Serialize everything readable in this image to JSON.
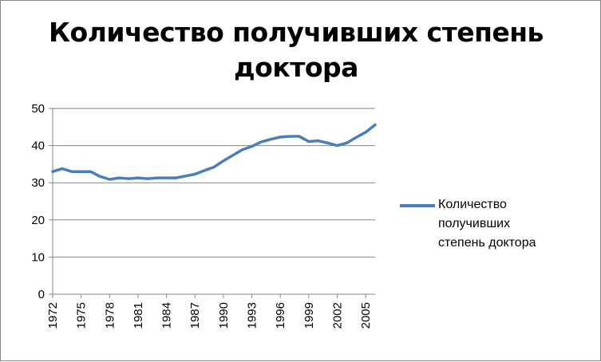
{
  "chart_data": {
    "type": "line",
    "title": "Количество получивших степень доктора",
    "title_lines": [
      "Количество получивших степень",
      "доктора"
    ],
    "xlabel": "",
    "ylabel": "",
    "ylim": [
      0,
      50
    ],
    "yticks": [
      "0",
      "10",
      "20",
      "30",
      "40",
      "50"
    ],
    "xtick_labels": [
      "1972",
      "1975",
      "1978",
      "1981",
      "1984",
      "1987",
      "1990",
      "1993",
      "1996",
      "1999",
      "2002",
      "2005"
    ],
    "x": [
      1972,
      1973,
      1974,
      1975,
      1976,
      1977,
      1978,
      1979,
      1980,
      1981,
      1982,
      1983,
      1984,
      1985,
      1986,
      1987,
      1988,
      1989,
      1990,
      1991,
      1992,
      1993,
      1994,
      1995,
      1996,
      1997,
      1998,
      1999,
      2000,
      2001,
      2002,
      2003,
      2004,
      2005,
      2006
    ],
    "series": [
      {
        "name": "Количество получивших степень доктора",
        "color": "#4a7ebb",
        "values": [
          33.0,
          33.8,
          33.0,
          33.0,
          33.0,
          31.7,
          30.9,
          31.3,
          31.1,
          31.3,
          31.1,
          31.3,
          31.3,
          31.3,
          31.8,
          32.3,
          33.3,
          34.2,
          35.9,
          37.4,
          38.9,
          39.8,
          41.0,
          41.7,
          42.3,
          42.5,
          42.5,
          41.1,
          41.3,
          40.7,
          40.0,
          40.7,
          42.2,
          43.6,
          45.6
        ]
      }
    ],
    "grid": "horizontal",
    "legend_position": "right"
  }
}
